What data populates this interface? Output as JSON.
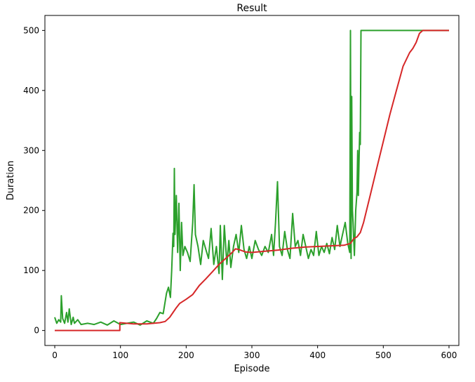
{
  "chart_data": {
    "type": "line",
    "title": "Result",
    "xlabel": "Episode",
    "ylabel": "Duration",
    "xlim": [
      -15,
      615
    ],
    "ylim": [
      -25,
      525
    ],
    "xticks": [
      0,
      100,
      200,
      300,
      400,
      500,
      600
    ],
    "yticks": [
      0,
      100,
      200,
      300,
      400,
      500
    ],
    "grid": false,
    "series": [
      {
        "color": "#2ca02c",
        "values": [
          [
            0,
            22
          ],
          [
            3,
            12
          ],
          [
            6,
            18
          ],
          [
            9,
            14
          ],
          [
            10,
            58
          ],
          [
            12,
            20
          ],
          [
            15,
            12
          ],
          [
            18,
            30
          ],
          [
            20,
            14
          ],
          [
            22,
            36
          ],
          [
            25,
            10
          ],
          [
            28,
            22
          ],
          [
            30,
            12
          ],
          [
            35,
            18
          ],
          [
            40,
            10
          ],
          [
            50,
            12
          ],
          [
            60,
            10
          ],
          [
            70,
            14
          ],
          [
            80,
            9
          ],
          [
            90,
            16
          ],
          [
            100,
            10
          ],
          [
            110,
            12
          ],
          [
            120,
            14
          ],
          [
            130,
            9
          ],
          [
            140,
            16
          ],
          [
            150,
            12
          ],
          [
            155,
            20
          ],
          [
            160,
            30
          ],
          [
            165,
            28
          ],
          [
            170,
            62
          ],
          [
            173,
            72
          ],
          [
            176,
            55
          ],
          [
            178,
            100
          ],
          [
            180,
            162
          ],
          [
            181,
            140
          ],
          [
            182,
            270
          ],
          [
            183,
            160
          ],
          [
            185,
            225
          ],
          [
            187,
            130
          ],
          [
            189,
            212
          ],
          [
            191,
            100
          ],
          [
            193,
            180
          ],
          [
            195,
            125
          ],
          [
            198,
            140
          ],
          [
            202,
            130
          ],
          [
            206,
            115
          ],
          [
            210,
            180
          ],
          [
            212,
            243
          ],
          [
            214,
            160
          ],
          [
            218,
            140
          ],
          [
            222,
            110
          ],
          [
            226,
            150
          ],
          [
            230,
            135
          ],
          [
            234,
            120
          ],
          [
            238,
            170
          ],
          [
            242,
            110
          ],
          [
            246,
            140
          ],
          [
            250,
            95
          ],
          [
            252,
            175
          ],
          [
            255,
            85
          ],
          [
            258,
            175
          ],
          [
            262,
            110
          ],
          [
            265,
            150
          ],
          [
            268,
            105
          ],
          [
            272,
            140
          ],
          [
            276,
            160
          ],
          [
            280,
            130
          ],
          [
            284,
            175
          ],
          [
            288,
            135
          ],
          [
            292,
            120
          ],
          [
            296,
            140
          ],
          [
            300,
            120
          ],
          [
            305,
            150
          ],
          [
            310,
            135
          ],
          [
            315,
            125
          ],
          [
            320,
            140
          ],
          [
            325,
            130
          ],
          [
            330,
            160
          ],
          [
            333,
            125
          ],
          [
            336,
            180
          ],
          [
            339,
            248
          ],
          [
            342,
            140
          ],
          [
            346,
            125
          ],
          [
            350,
            165
          ],
          [
            354,
            135
          ],
          [
            358,
            120
          ],
          [
            362,
            195
          ],
          [
            366,
            140
          ],
          [
            370,
            150
          ],
          [
            374,
            125
          ],
          [
            378,
            160
          ],
          [
            382,
            140
          ],
          [
            386,
            120
          ],
          [
            390,
            135
          ],
          [
            394,
            125
          ],
          [
            398,
            165
          ],
          [
            402,
            125
          ],
          [
            406,
            140
          ],
          [
            410,
            130
          ],
          [
            414,
            145
          ],
          [
            418,
            128
          ],
          [
            422,
            155
          ],
          [
            426,
            135
          ],
          [
            430,
            175
          ],
          [
            434,
            140
          ],
          [
            438,
            160
          ],
          [
            442,
            180
          ],
          [
            446,
            145
          ],
          [
            449,
            130
          ],
          [
            450,
            500
          ],
          [
            451,
            120
          ],
          [
            452,
            390
          ],
          [
            453,
            200
          ],
          [
            454,
            180
          ],
          [
            456,
            125
          ],
          [
            458,
            200
          ],
          [
            460,
            230
          ],
          [
            461,
            300
          ],
          [
            462,
            225
          ],
          [
            464,
            330
          ],
          [
            465,
            310
          ],
          [
            466,
            500
          ],
          [
            470,
            500
          ],
          [
            500,
            500
          ],
          [
            550,
            500
          ],
          [
            600,
            500
          ]
        ]
      },
      {
        "color": "#d62728",
        "values": [
          [
            0,
            0
          ],
          [
            99,
            0
          ],
          [
            99,
            13
          ],
          [
            120,
            11
          ],
          [
            140,
            11
          ],
          [
            150,
            12
          ],
          [
            160,
            13
          ],
          [
            168,
            15
          ],
          [
            175,
            22
          ],
          [
            180,
            30
          ],
          [
            185,
            38
          ],
          [
            190,
            45
          ],
          [
            200,
            52
          ],
          [
            210,
            60
          ],
          [
            220,
            75
          ],
          [
            230,
            86
          ],
          [
            240,
            98
          ],
          [
            250,
            110
          ],
          [
            260,
            120
          ],
          [
            270,
            130
          ],
          [
            275,
            136
          ],
          [
            280,
            135
          ],
          [
            290,
            131
          ],
          [
            300,
            130
          ],
          [
            320,
            132
          ],
          [
            340,
            134
          ],
          [
            360,
            137
          ],
          [
            380,
            139
          ],
          [
            400,
            140
          ],
          [
            420,
            141
          ],
          [
            440,
            142
          ],
          [
            450,
            145
          ],
          [
            455,
            153
          ],
          [
            460,
            156
          ],
          [
            465,
            163
          ],
          [
            470,
            180
          ],
          [
            480,
            225
          ],
          [
            490,
            270
          ],
          [
            500,
            315
          ],
          [
            510,
            360
          ],
          [
            520,
            400
          ],
          [
            530,
            440
          ],
          [
            540,
            463
          ],
          [
            545,
            470
          ],
          [
            550,
            480
          ],
          [
            555,
            495
          ],
          [
            560,
            500
          ],
          [
            600,
            500
          ]
        ]
      }
    ]
  }
}
